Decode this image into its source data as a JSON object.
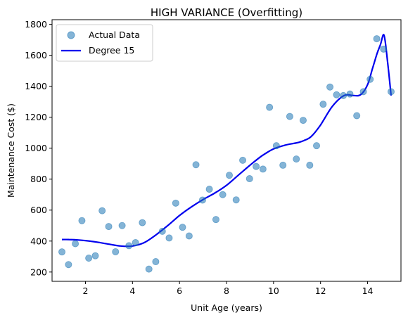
{
  "chart_data": {
    "type": "scatter",
    "title": "HIGH VARIANCE (Overfitting)",
    "xlabel": "Unit Age (years)",
    "ylabel": "Maintenance Cost ($)",
    "xlim": [
      0.58,
      15.42
    ],
    "ylim": [
      140,
      1830
    ],
    "xticks": [
      2,
      4,
      6,
      8,
      10,
      12,
      14
    ],
    "yticks": [
      200,
      400,
      600,
      800,
      1000,
      1200,
      1400,
      1600,
      1800
    ],
    "grid": false,
    "legend_position": "top-left",
    "series": [
      {
        "name": "Actual Data",
        "kind": "scatter",
        "color": "#1f77b4",
        "x": [
          1.0,
          1.28,
          1.57,
          1.85,
          2.14,
          2.42,
          2.71,
          2.99,
          3.28,
          3.56,
          3.85,
          4.13,
          4.42,
          4.7,
          4.99,
          5.27,
          5.56,
          5.84,
          6.13,
          6.41,
          6.7,
          6.98,
          7.27,
          7.55,
          7.84,
          8.12,
          8.41,
          8.69,
          8.98,
          9.26,
          9.55,
          9.83,
          10.12,
          10.4,
          10.69,
          10.97,
          11.26,
          11.54,
          11.83,
          12.11,
          12.4,
          12.68,
          12.97,
          13.25,
          13.54,
          13.82,
          14.11,
          14.39,
          14.68,
          15.0
        ],
        "y": [
          330,
          248,
          383,
          532,
          290,
          305,
          596,
          494,
          331,
          500,
          370,
          390,
          519,
          219,
          267,
          463,
          420,
          645,
          489,
          433,
          893,
          665,
          735,
          539,
          700,
          825,
          666,
          922,
          803,
          882,
          865,
          1264,
          1016,
          890,
          1205,
          930,
          1180,
          890,
          1016,
          1284,
          1395,
          1345,
          1340,
          1350,
          1210,
          1365,
          1445,
          1707,
          1640,
          1365
        ]
      },
      {
        "name": "Degree 15",
        "kind": "line",
        "color": "#0000ee",
        "x": [
          1.0,
          1.3,
          1.6,
          2.0,
          2.5,
          3.0,
          3.5,
          4.0,
          4.5,
          5.0,
          5.5,
          6.0,
          6.5,
          7.0,
          7.5,
          8.0,
          8.5,
          9.0,
          9.5,
          10.0,
          10.5,
          11.0,
          11.3,
          11.6,
          12.0,
          12.5,
          13.0,
          13.4,
          13.7,
          14.0,
          14.2,
          14.4,
          14.55,
          14.7,
          14.85,
          15.0
        ],
        "y": [
          410,
          410,
          408,
          403,
          393,
          380,
          368,
          368,
          390,
          440,
          500,
          565,
          620,
          668,
          710,
          760,
          825,
          890,
          950,
          995,
          1020,
          1035,
          1050,
          1075,
          1150,
          1270,
          1340,
          1340,
          1345,
          1410,
          1510,
          1610,
          1670,
          1730,
          1560,
          1340
        ]
      }
    ]
  }
}
